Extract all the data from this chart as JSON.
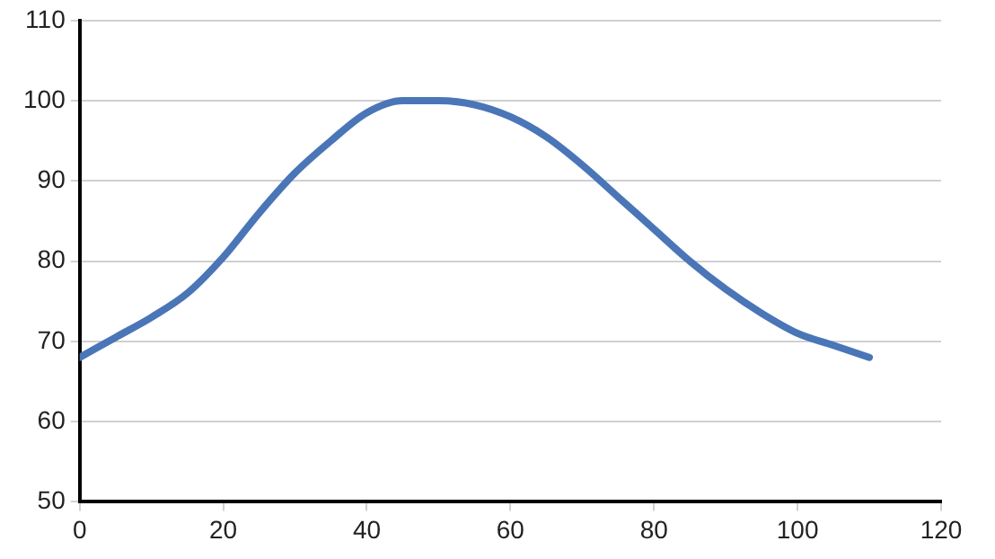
{
  "chart_data": {
    "type": "line",
    "x": [
      0,
      5,
      10,
      15,
      20,
      25,
      30,
      35,
      40,
      45,
      50,
      55,
      60,
      65,
      70,
      75,
      80,
      85,
      90,
      95,
      100,
      105,
      110
    ],
    "series": [
      {
        "color": "#4a76b8",
        "values": [
          68,
          70.5,
          73,
          76,
          80.5,
          86,
          91,
          95,
          98.5,
          100,
          100,
          99.5,
          98,
          95.5,
          92,
          88,
          84,
          80,
          76.5,
          73.5,
          71,
          69.5,
          68
        ]
      }
    ],
    "xlim": [
      0,
      120
    ],
    "xticks": [
      0,
      20,
      40,
      60,
      80,
      100,
      120
    ],
    "ylim": [
      50,
      110
    ],
    "yticks": [
      50,
      60,
      70,
      80,
      90,
      100,
      110
    ],
    "grid": "y",
    "legend": false,
    "marker": "none",
    "line_style": "solid"
  }
}
